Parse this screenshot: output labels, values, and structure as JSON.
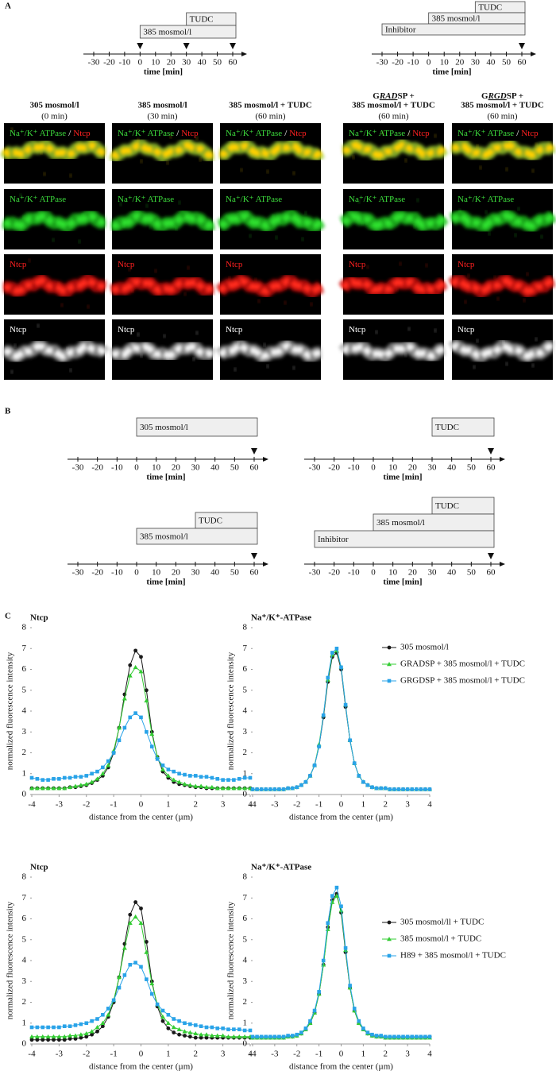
{
  "panel_labels": [
    "A",
    "B",
    "C"
  ],
  "timelines_a": [
    {
      "bars": [
        {
          "label": "TUDC",
          "start": 30,
          "end": 60
        },
        {
          "label": "385 mosmol/l",
          "start": 0,
          "end": 60
        }
      ],
      "markers": [
        0,
        30,
        60
      ],
      "ticks": [
        -30,
        -20,
        -10,
        0,
        10,
        20,
        30,
        40,
        50,
        60
      ],
      "axis_label": "time [min]"
    },
    {
      "bars": [
        {
          "label": "TUDC",
          "start": 30,
          "end": 60
        },
        {
          "label": "385 mosmol/l",
          "start": 0,
          "end": 60
        },
        {
          "label": "Inhibitor",
          "start": -30,
          "end": 60
        }
      ],
      "markers": [
        60
      ],
      "ticks": [
        -30,
        -20,
        -10,
        0,
        10,
        20,
        30,
        40,
        50,
        60
      ],
      "axis_label": "time [min]"
    }
  ],
  "columns": [
    {
      "title": "305 mosmol/l",
      "time": "(0 min)"
    },
    {
      "title": "385 mosmol/l",
      "time": "(30 min)"
    },
    {
      "title": "385 mosmol/l + TUDC",
      "time": "(60 min)"
    },
    {
      "prefix": {
        "before": "G",
        "emph": "RAD",
        "after": "SP +"
      },
      "title": "385 mosmol/l + TUDC",
      "time": "(60 min)"
    },
    {
      "prefix": {
        "before": "G",
        "emph": "RGD",
        "after": "SP +"
      },
      "title": "385 mosmol/l + TUDC",
      "time": "(60 min)"
    }
  ],
  "image_rows": [
    {
      "green": "Na⁺/K⁺ ATPase",
      "sep": "/",
      "red": "Ntcp"
    },
    {
      "green": "Na⁺/K⁺ ATPase"
    },
    {
      "red": "Ntcp"
    },
    {
      "white": "Ntcp"
    }
  ],
  "timelines_b": [
    {
      "bars": [
        {
          "label": "305 mosmol/l",
          "start": 0,
          "end": 60
        }
      ],
      "markers": [
        60
      ],
      "ticks": [
        -30,
        -20,
        -10,
        0,
        10,
        20,
        30,
        40,
        50,
        60
      ],
      "axis_label": "time [min]"
    },
    {
      "bars": [
        {
          "label": "TUDC",
          "start": 30,
          "end": 60
        }
      ],
      "markers": [
        60
      ],
      "ticks": [
        -30,
        -20,
        -10,
        0,
        10,
        20,
        30,
        40,
        50,
        60
      ],
      "axis_label": "time [min]"
    },
    {
      "bars": [
        {
          "label": "TUDC",
          "start": 30,
          "end": 60
        },
        {
          "label": "385 mosmol/l",
          "start": 0,
          "end": 60
        }
      ],
      "markers": [
        60
      ],
      "ticks": [
        -30,
        -20,
        -10,
        0,
        10,
        20,
        30,
        40,
        50,
        60
      ],
      "axis_label": "time [min]"
    },
    {
      "bars": [
        {
          "label": "TUDC",
          "start": 30,
          "end": 60
        },
        {
          "label": "385 mosmol/l",
          "start": 0,
          "end": 60
        },
        {
          "label": "Inhibitor",
          "start": -30,
          "end": 60
        }
      ],
      "markers": [
        60
      ],
      "ticks": [
        -30,
        -20,
        -10,
        0,
        10,
        20,
        30,
        40,
        50,
        60
      ],
      "axis_label": "time [min]"
    }
  ],
  "chart_data": [
    {
      "type": "line",
      "title": "Ntcp",
      "xlabel": "distance from the center (µm)",
      "ylabel": "normalized fluorescence intensity",
      "xlim": [
        -4,
        4
      ],
      "ylim": [
        0,
        8
      ],
      "xticks": [
        -4,
        -3,
        -2,
        -1,
        0,
        1,
        2,
        3,
        4
      ],
      "yticks": [
        0,
        1,
        2,
        3,
        4,
        5,
        6,
        7,
        8
      ],
      "x": [
        -4,
        -3.8,
        -3.6,
        -3.4,
        -3.2,
        -3,
        -2.8,
        -2.6,
        -2.4,
        -2.2,
        -2,
        -1.8,
        -1.6,
        -1.4,
        -1.2,
        -1,
        -0.8,
        -0.6,
        -0.4,
        -0.2,
        0,
        0.2,
        0.4,
        0.6,
        0.8,
        1,
        1.2,
        1.4,
        1.6,
        1.8,
        2,
        2.2,
        2.4,
        2.6,
        2.8,
        3,
        3.2,
        3.4,
        3.6,
        3.8,
        4
      ],
      "series": [
        {
          "color": "#1a1a1a",
          "marker": "circle",
          "values": [
            0.3,
            0.3,
            0.3,
            0.3,
            0.3,
            0.3,
            0.3,
            0.35,
            0.35,
            0.4,
            0.45,
            0.55,
            0.7,
            0.9,
            1.3,
            2.0,
            3.2,
            4.8,
            6.2,
            6.9,
            6.6,
            5.0,
            3.0,
            1.8,
            1.1,
            0.8,
            0.6,
            0.5,
            0.45,
            0.4,
            0.35,
            0.35,
            0.3,
            0.3,
            0.3,
            0.3,
            0.3,
            0.3,
            0.3,
            0.3,
            0.3
          ]
        },
        {
          "color": "#33cc33",
          "marker": "triangle",
          "values": [
            0.3,
            0.3,
            0.3,
            0.3,
            0.3,
            0.3,
            0.3,
            0.35,
            0.4,
            0.45,
            0.5,
            0.6,
            0.75,
            1.0,
            1.4,
            2.1,
            3.2,
            4.6,
            5.7,
            6.1,
            5.9,
            4.5,
            2.9,
            1.8,
            1.2,
            0.9,
            0.7,
            0.6,
            0.5,
            0.45,
            0.4,
            0.4,
            0.35,
            0.35,
            0.3,
            0.3,
            0.3,
            0.3,
            0.3,
            0.3,
            0.3
          ]
        },
        {
          "color": "#29a3e8",
          "marker": "square",
          "values": [
            0.8,
            0.75,
            0.7,
            0.7,
            0.75,
            0.75,
            0.8,
            0.8,
            0.85,
            0.85,
            0.9,
            1.0,
            1.1,
            1.3,
            1.6,
            2.0,
            2.6,
            3.2,
            3.7,
            3.9,
            3.7,
            3.0,
            2.3,
            1.7,
            1.4,
            1.2,
            1.1,
            1.0,
            0.95,
            0.9,
            0.9,
            0.85,
            0.85,
            0.8,
            0.75,
            0.7,
            0.7,
            0.7,
            0.75,
            0.8,
            0.8
          ]
        }
      ]
    },
    {
      "type": "line",
      "title": "Na⁺/K⁺-ATPase",
      "xlabel": "distance from the center (µm)",
      "ylabel": "normalized fluorescence intensity",
      "legend": "right",
      "xlim": [
        -4,
        4
      ],
      "ylim": [
        0,
        8
      ],
      "xticks": [
        -4,
        -3,
        -2,
        -1,
        0,
        1,
        2,
        3,
        4
      ],
      "yticks": [
        0,
        1,
        2,
        3,
        4,
        5,
        6,
        7,
        8
      ],
      "x": [
        -4,
        -3.8,
        -3.6,
        -3.4,
        -3.2,
        -3,
        -2.8,
        -2.6,
        -2.4,
        -2.2,
        -2,
        -1.8,
        -1.6,
        -1.4,
        -1.2,
        -1,
        -0.8,
        -0.6,
        -0.4,
        -0.2,
        0,
        0.2,
        0.4,
        0.6,
        0.8,
        1,
        1.2,
        1.4,
        1.6,
        1.8,
        2,
        2.2,
        2.4,
        2.6,
        2.8,
        3,
        3.2,
        3.4,
        3.6,
        3.8,
        4
      ],
      "series": [
        {
          "name": "305 mosmol/l",
          "color": "#1a1a1a",
          "marker": "circle",
          "values": [
            0.25,
            0.25,
            0.25,
            0.25,
            0.25,
            0.25,
            0.25,
            0.25,
            0.3,
            0.3,
            0.35,
            0.45,
            0.6,
            0.9,
            1.4,
            2.3,
            3.7,
            5.4,
            6.6,
            6.8,
            6.0,
            4.2,
            2.6,
            1.5,
            0.9,
            0.6,
            0.45,
            0.35,
            0.3,
            0.3,
            0.3,
            0.25,
            0.25,
            0.25,
            0.25,
            0.25,
            0.25,
            0.25,
            0.25,
            0.25,
            0.25
          ]
        },
        {
          "name": "GRADSP + 385 mosmol/l + TUDC",
          "color": "#33cc33",
          "marker": "triangle",
          "values": [
            0.25,
            0.25,
            0.25,
            0.25,
            0.25,
            0.25,
            0.25,
            0.25,
            0.3,
            0.3,
            0.35,
            0.45,
            0.6,
            0.9,
            1.4,
            2.4,
            3.8,
            5.5,
            6.7,
            6.9,
            6.1,
            4.3,
            2.6,
            1.5,
            0.9,
            0.6,
            0.45,
            0.35,
            0.3,
            0.3,
            0.3,
            0.25,
            0.25,
            0.25,
            0.25,
            0.25,
            0.25,
            0.25,
            0.25,
            0.25,
            0.25
          ]
        },
        {
          "name": "GRGDSP + 385 mosmol/l + TUDC",
          "color": "#29a3e8",
          "marker": "square",
          "values": [
            0.25,
            0.25,
            0.25,
            0.25,
            0.25,
            0.25,
            0.25,
            0.25,
            0.3,
            0.3,
            0.35,
            0.45,
            0.6,
            0.9,
            1.4,
            2.3,
            3.8,
            5.6,
            6.8,
            7.0,
            6.1,
            4.3,
            2.6,
            1.5,
            0.9,
            0.6,
            0.45,
            0.35,
            0.3,
            0.3,
            0.3,
            0.25,
            0.25,
            0.25,
            0.25,
            0.25,
            0.25,
            0.25,
            0.25,
            0.25,
            0.25
          ]
        }
      ]
    },
    {
      "type": "line",
      "title": "Ntcp",
      "xlabel": "distance from the center (µm)",
      "ylabel": "normalized fluorescence intensity",
      "xlim": [
        -4,
        4
      ],
      "ylim": [
        0,
        8
      ],
      "xticks": [
        -4,
        -3,
        -2,
        -1,
        0,
        1,
        2,
        3,
        4
      ],
      "yticks": [
        0,
        1,
        2,
        3,
        4,
        5,
        6,
        7,
        8
      ],
      "x": [
        -4,
        -3.8,
        -3.6,
        -3.4,
        -3.2,
        -3,
        -2.8,
        -2.6,
        -2.4,
        -2.2,
        -2,
        -1.8,
        -1.6,
        -1.4,
        -1.2,
        -1,
        -0.8,
        -0.6,
        -0.4,
        -0.2,
        0,
        0.2,
        0.4,
        0.6,
        0.8,
        1,
        1.2,
        1.4,
        1.6,
        1.8,
        2,
        2.2,
        2.4,
        2.6,
        2.8,
        3,
        3.2,
        3.4,
        3.6,
        3.8,
        4
      ],
      "series": [
        {
          "color": "#1a1a1a",
          "marker": "circle",
          "values": [
            0.2,
            0.2,
            0.2,
            0.2,
            0.2,
            0.2,
            0.2,
            0.25,
            0.25,
            0.3,
            0.35,
            0.45,
            0.6,
            0.85,
            1.3,
            2.0,
            3.2,
            4.8,
            6.2,
            6.8,
            6.5,
            4.9,
            3.0,
            1.8,
            1.1,
            0.75,
            0.55,
            0.45,
            0.4,
            0.35,
            0.3,
            0.3,
            0.3,
            0.3,
            0.3,
            0.3,
            0.3,
            0.3,
            0.3,
            0.3,
            0.3
          ]
        },
        {
          "color": "#33cc33",
          "marker": "triangle",
          "values": [
            0.35,
            0.35,
            0.35,
            0.35,
            0.35,
            0.35,
            0.35,
            0.4,
            0.4,
            0.45,
            0.5,
            0.6,
            0.8,
            1.0,
            1.4,
            2.1,
            3.2,
            4.6,
            5.8,
            6.1,
            5.8,
            4.4,
            2.9,
            1.9,
            1.3,
            1.0,
            0.8,
            0.7,
            0.6,
            0.55,
            0.5,
            0.45,
            0.45,
            0.4,
            0.4,
            0.4,
            0.35,
            0.35,
            0.35,
            0.35,
            0.35
          ]
        },
        {
          "color": "#29a3e8",
          "marker": "square",
          "values": [
            0.8,
            0.8,
            0.8,
            0.8,
            0.8,
            0.8,
            0.85,
            0.85,
            0.9,
            0.95,
            1.0,
            1.1,
            1.2,
            1.4,
            1.7,
            2.1,
            2.7,
            3.3,
            3.8,
            3.9,
            3.7,
            3.1,
            2.4,
            1.9,
            1.6,
            1.4,
            1.2,
            1.1,
            1.0,
            0.95,
            0.9,
            0.85,
            0.8,
            0.8,
            0.75,
            0.75,
            0.7,
            0.7,
            0.7,
            0.65,
            0.65
          ]
        }
      ]
    },
    {
      "type": "line",
      "title": "Na⁺/K⁺-ATPase",
      "xlabel": "distance from the center (µm)",
      "ylabel": "normalized fluorescence intensity",
      "legend": "right",
      "xlim": [
        -4,
        4
      ],
      "ylim": [
        0,
        8
      ],
      "xticks": [
        -4,
        -3,
        -2,
        -1,
        0,
        1,
        2,
        3,
        4
      ],
      "yticks": [
        0,
        1,
        2,
        3,
        4,
        5,
        6,
        7,
        8
      ],
      "x": [
        -4,
        -3.8,
        -3.6,
        -3.4,
        -3.2,
        -3,
        -2.8,
        -2.6,
        -2.4,
        -2.2,
        -2,
        -1.8,
        -1.6,
        -1.4,
        -1.2,
        -1,
        -0.8,
        -0.6,
        -0.4,
        -0.2,
        0,
        0.2,
        0.4,
        0.6,
        0.8,
        1,
        1.2,
        1.4,
        1.6,
        1.8,
        2,
        2.2,
        2.4,
        2.6,
        2.8,
        3,
        3.2,
        3.4,
        3.6,
        3.8,
        4
      ],
      "series": [
        {
          "name": "305 mosmol/ll + TUDC",
          "color": "#1a1a1a",
          "marker": "circle",
          "values": [
            0.3,
            0.3,
            0.3,
            0.3,
            0.3,
            0.3,
            0.3,
            0.3,
            0.35,
            0.35,
            0.4,
            0.5,
            0.7,
            1.0,
            1.5,
            2.4,
            3.8,
            5.6,
            6.9,
            7.2,
            6.3,
            4.4,
            2.7,
            1.6,
            1.0,
            0.7,
            0.5,
            0.4,
            0.35,
            0.35,
            0.3,
            0.3,
            0.3,
            0.3,
            0.3,
            0.3,
            0.3,
            0.3,
            0.3,
            0.3,
            0.35
          ]
        },
        {
          "name": "385 mosmol/l + TUDC",
          "color": "#33cc33",
          "marker": "triangle",
          "values": [
            0.3,
            0.3,
            0.3,
            0.3,
            0.3,
            0.3,
            0.3,
            0.3,
            0.35,
            0.35,
            0.4,
            0.5,
            0.7,
            1.0,
            1.5,
            2.4,
            3.8,
            5.5,
            6.8,
            7.1,
            6.4,
            4.5,
            2.7,
            1.6,
            1.0,
            0.7,
            0.5,
            0.4,
            0.35,
            0.35,
            0.3,
            0.3,
            0.3,
            0.3,
            0.3,
            0.3,
            0.3,
            0.3,
            0.3,
            0.3,
            0.3
          ]
        },
        {
          "name": "H89 + 385 mosmol/l + TUDC",
          "color": "#29a3e8",
          "marker": "square",
          "values": [
            0.35,
            0.35,
            0.35,
            0.35,
            0.35,
            0.35,
            0.35,
            0.35,
            0.4,
            0.4,
            0.45,
            0.55,
            0.75,
            1.1,
            1.6,
            2.5,
            4.0,
            5.8,
            7.1,
            7.5,
            6.6,
            4.6,
            2.8,
            1.7,
            1.1,
            0.75,
            0.55,
            0.45,
            0.4,
            0.4,
            0.35,
            0.35,
            0.35,
            0.35,
            0.35,
            0.35,
            0.35,
            0.35,
            0.35,
            0.35,
            0.35
          ]
        }
      ]
    }
  ]
}
